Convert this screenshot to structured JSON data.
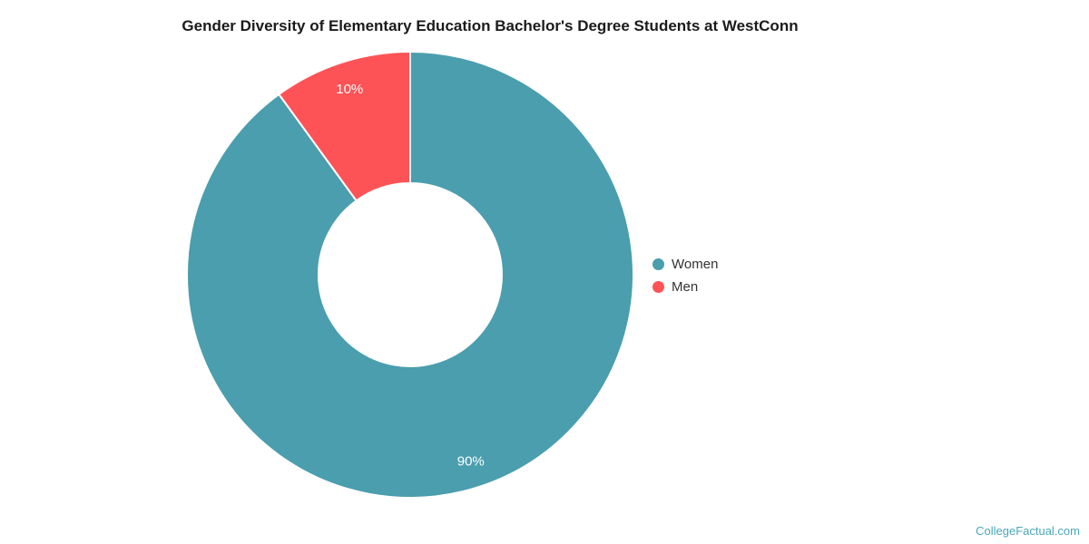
{
  "page": {
    "background_color": "#ffffff"
  },
  "chart_data": {
    "type": "pie",
    "subtype": "donut",
    "title": "Gender Diversity of Elementary Education Bachelor's Degree Students at WestConn",
    "series": [
      {
        "name": "Women",
        "value": 90,
        "label": "90%",
        "color": "#4A9EAE"
      },
      {
        "name": "Men",
        "value": 10,
        "label": "10%",
        "color": "#FE5356"
      }
    ],
    "start_angle_deg": 0,
    "direction": "clockwise",
    "inner_radius_ratio": 0.41,
    "slice_border_color": "#ffffff",
    "data_label_color": "#ffffff",
    "legend_position": "right",
    "grid": "off"
  },
  "legend": {
    "items": [
      {
        "label": "Women",
        "color": "#4A9EAE"
      },
      {
        "label": "Men",
        "color": "#FE5356"
      }
    ]
  },
  "watermark": {
    "text": "CollegeFactual.com",
    "color": "#4BA7BA"
  }
}
